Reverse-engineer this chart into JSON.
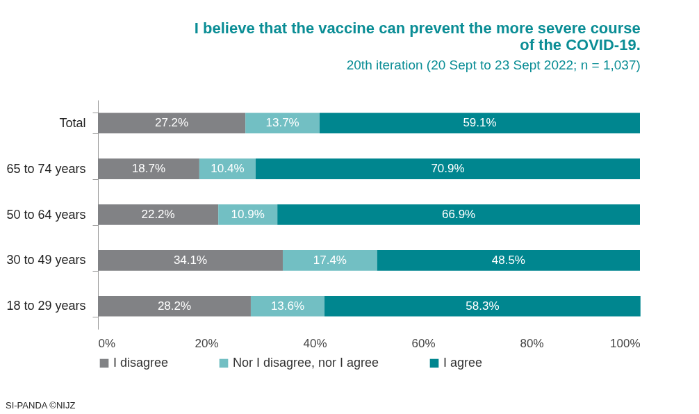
{
  "chart_data": {
    "type": "bar",
    "orientation": "horizontal",
    "stacked": true,
    "title": "I believe that the vaccine can prevent the more severe course of the COVID-19.",
    "subtitle": "20th iteration (20 Sept to 23 Sept 2022; n = 1,037)",
    "categories": [
      "Total",
      "65 to 74 years",
      "50 to 64 years",
      "30 to 49 years",
      "18 to 29 years"
    ],
    "series": [
      {
        "name": "I disagree",
        "color": "#818285",
        "values": [
          27.2,
          18.7,
          22.2,
          34.1,
          28.2
        ],
        "value_labels": [
          "27.2%",
          "18.7%",
          "22.2%",
          "34.1%",
          "28.2%"
        ]
      },
      {
        "name": "Nor I disagree, nor I agree",
        "color": "#72bfc3",
        "values": [
          13.7,
          10.4,
          10.9,
          17.4,
          13.6
        ],
        "value_labels": [
          "13.7%",
          "10.4%",
          "10.9%",
          "17.4%",
          "13.6%"
        ]
      },
      {
        "name": "I agree",
        "color": "#00868f",
        "values": [
          59.1,
          70.9,
          66.9,
          48.5,
          58.3
        ],
        "value_labels": [
          "59.1%",
          "70.9%",
          "66.9%",
          "48.5%",
          "58.3%"
        ]
      }
    ],
    "xlim": [
      0,
      100
    ],
    "xticks": [
      {
        "value": 0,
        "label": "0%"
      },
      {
        "value": 20,
        "label": "20%"
      },
      {
        "value": 40,
        "label": "40%"
      },
      {
        "value": 60,
        "label": "60%"
      },
      {
        "value": 80,
        "label": "80%"
      },
      {
        "value": 100,
        "label": "100%"
      }
    ],
    "legend": "bottom",
    "grid": false,
    "annotations": [
      "SI-PANDA ©NIJZ"
    ]
  }
}
